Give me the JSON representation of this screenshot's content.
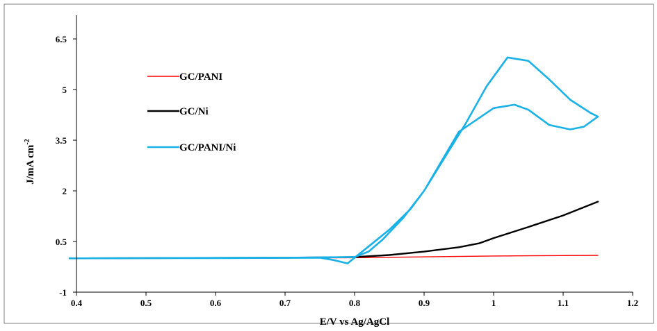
{
  "chart_data": {
    "type": "line",
    "title": "",
    "xlabel": "E/V vs Ag/AgCl",
    "ylabel": "J/mA cm",
    "ylabel_sup": "-2",
    "xlim": [
      0.4,
      1.2
    ],
    "ylim": [
      -1,
      7.2
    ],
    "xticks": [
      "0.4",
      "0.5",
      "0.6",
      "0.7",
      "0.8",
      "0.9",
      "1",
      "1.1",
      "1.2"
    ],
    "xtick_values": [
      0.4,
      0.5,
      0.6,
      0.7,
      0.8,
      0.9,
      1.0,
      1.1,
      1.2
    ],
    "yticks": [
      "-1",
      "0.5",
      "2",
      "3.5",
      "5",
      "6.5"
    ],
    "ytick_values": [
      -1,
      0.5,
      2,
      3.5,
      5,
      6.5
    ],
    "grid": false,
    "legend_position": "top-left",
    "series": [
      {
        "name": "GC/PANI",
        "color": "#ff0000",
        "stroke_width": 1.4,
        "points": [
          [
            0.39,
            0.0
          ],
          [
            0.6,
            0.01
          ],
          [
            0.8,
            0.02
          ],
          [
            1.0,
            0.07
          ],
          [
            1.15,
            0.09
          ]
        ]
      },
      {
        "name": "GC/Ni",
        "color": "#000000",
        "stroke_width": 2.4,
        "points": [
          [
            0.39,
            0.0
          ],
          [
            0.7,
            0.02
          ],
          [
            0.8,
            0.04
          ],
          [
            0.85,
            0.1
          ],
          [
            0.9,
            0.2
          ],
          [
            0.95,
            0.33
          ],
          [
            0.98,
            0.45
          ],
          [
            1.0,
            0.6
          ],
          [
            1.05,
            0.93
          ],
          [
            1.1,
            1.27
          ],
          [
            1.15,
            1.68
          ]
        ]
      },
      {
        "name": "GC/PANI/Ni",
        "color": "#1ab2e6",
        "stroke_width": 2.6,
        "points": [
          [
            0.39,
            0.0
          ],
          [
            0.6,
            0.01
          ],
          [
            0.75,
            0.02
          ],
          [
            0.77,
            -0.05
          ],
          [
            0.79,
            -0.15
          ],
          [
            0.8,
            0.02
          ],
          [
            0.82,
            0.35
          ],
          [
            0.85,
            0.85
          ],
          [
            0.88,
            1.45
          ],
          [
            0.9,
            2.0
          ],
          [
            0.93,
            3.0
          ],
          [
            0.96,
            4.0
          ],
          [
            0.99,
            5.1
          ],
          [
            1.02,
            5.95
          ],
          [
            1.05,
            5.85
          ],
          [
            1.08,
            5.3
          ],
          [
            1.11,
            4.7
          ],
          [
            1.14,
            4.3
          ],
          [
            1.15,
            4.2
          ],
          [
            1.13,
            3.9
          ],
          [
            1.11,
            3.82
          ],
          [
            1.08,
            3.95
          ],
          [
            1.05,
            4.4
          ],
          [
            1.03,
            4.55
          ],
          [
            1.0,
            4.45
          ],
          [
            0.95,
            3.75
          ],
          [
            0.9,
            2.0
          ],
          [
            0.87,
            1.2
          ],
          [
            0.84,
            0.55
          ],
          [
            0.82,
            0.2
          ],
          [
            0.8,
            0.04
          ],
          [
            0.7,
            0.02
          ],
          [
            0.39,
            0.0
          ]
        ]
      }
    ]
  }
}
